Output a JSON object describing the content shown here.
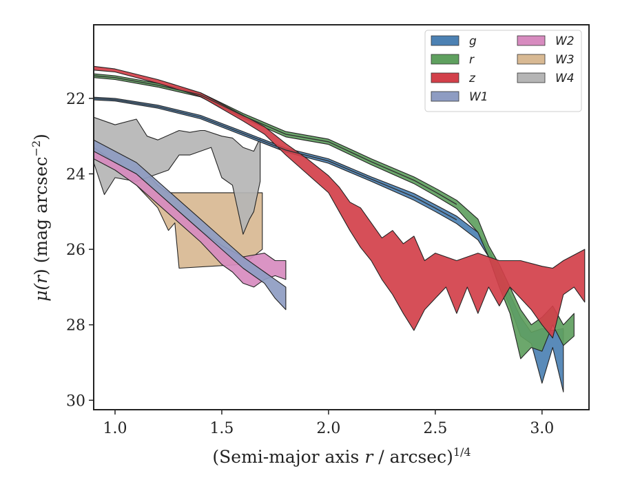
{
  "chart_data": {
    "type": "area",
    "xlabel_main": "(Semi-major axis ",
    "xlabel_var": "r",
    "xlabel_unit": " / arcsec)",
    "xlabel_sup": "1/4",
    "ylabel_main": "μ(",
    "ylabel_var": "r",
    "ylabel_rest": ") (mag arcsec",
    "ylabel_sup": "−2",
    "ylabel_end": ")",
    "xlim": [
      0.9,
      3.22
    ],
    "ylim": [
      30.25,
      20.05
    ],
    "y_inverted": true,
    "x_ticks": [
      1.0,
      1.5,
      2.0,
      2.5,
      3.0
    ],
    "x_tick_labels": [
      "1.0",
      "1.5",
      "2.0",
      "2.5",
      "3.0"
    ],
    "y_ticks": [
      22,
      24,
      26,
      28,
      30
    ],
    "y_tick_labels": [
      "22",
      "24",
      "26",
      "28",
      "30"
    ],
    "grid": false,
    "legend": {
      "placement": "top-right",
      "columns": 2
    },
    "series": [
      {
        "name": "g",
        "color": "#4c81b3",
        "upper": [
          [
            0.9,
            21.97
          ],
          [
            1.0,
            22.0
          ],
          [
            1.2,
            22.18
          ],
          [
            1.4,
            22.45
          ],
          [
            1.6,
            22.88
          ],
          [
            1.8,
            23.32
          ],
          [
            2.0,
            23.6
          ],
          [
            2.2,
            24.08
          ],
          [
            2.4,
            24.52
          ],
          [
            2.5,
            24.82
          ],
          [
            2.6,
            25.12
          ],
          [
            2.7,
            25.55
          ],
          [
            2.75,
            26.0
          ],
          [
            2.8,
            26.6
          ],
          [
            2.85,
            27.2
          ],
          [
            2.9,
            27.8
          ],
          [
            2.95,
            28.2
          ],
          [
            3.0,
            28.1
          ],
          [
            3.05,
            28.15
          ],
          [
            3.1,
            28.1
          ]
        ],
        "lower": [
          [
            3.1,
            29.78
          ],
          [
            3.05,
            28.6
          ],
          [
            3.0,
            29.55
          ],
          [
            2.95,
            28.5
          ],
          [
            2.9,
            28.3
          ],
          [
            2.85,
            27.5
          ],
          [
            2.8,
            26.9
          ],
          [
            2.75,
            26.2
          ],
          [
            2.7,
            25.75
          ],
          [
            2.6,
            25.32
          ],
          [
            2.5,
            25.0
          ],
          [
            2.4,
            24.7
          ],
          [
            2.2,
            24.2
          ],
          [
            2.0,
            23.72
          ],
          [
            1.8,
            23.42
          ],
          [
            1.6,
            22.98
          ],
          [
            1.4,
            22.54
          ],
          [
            1.2,
            22.26
          ],
          [
            1.0,
            22.07
          ],
          [
            0.9,
            22.04
          ]
        ]
      },
      {
        "name": "r",
        "color": "#5fa05f",
        "upper": [
          [
            0.9,
            21.35
          ],
          [
            1.0,
            21.4
          ],
          [
            1.2,
            21.6
          ],
          [
            1.4,
            21.85
          ],
          [
            1.6,
            22.4
          ],
          [
            1.8,
            22.88
          ],
          [
            2.0,
            23.08
          ],
          [
            2.2,
            23.6
          ],
          [
            2.4,
            24.08
          ],
          [
            2.5,
            24.38
          ],
          [
            2.6,
            24.7
          ],
          [
            2.7,
            25.2
          ],
          [
            2.75,
            25.9
          ],
          [
            2.8,
            26.4
          ],
          [
            2.85,
            27.0
          ],
          [
            2.9,
            27.6
          ],
          [
            2.95,
            28.0
          ],
          [
            3.0,
            27.8
          ],
          [
            3.05,
            27.5
          ],
          [
            3.1,
            28.0
          ],
          [
            3.15,
            27.7
          ]
        ],
        "lower": [
          [
            3.15,
            28.3
          ],
          [
            3.1,
            28.55
          ],
          [
            3.05,
            28.0
          ],
          [
            3.0,
            28.7
          ],
          [
            2.95,
            28.6
          ],
          [
            2.9,
            28.9
          ],
          [
            2.85,
            27.7
          ],
          [
            2.8,
            27.0
          ],
          [
            2.75,
            26.2
          ],
          [
            2.7,
            25.55
          ],
          [
            2.6,
            24.92
          ],
          [
            2.5,
            24.58
          ],
          [
            2.4,
            24.26
          ],
          [
            2.2,
            23.76
          ],
          [
            2.0,
            23.22
          ],
          [
            1.8,
            23.02
          ],
          [
            1.6,
            22.52
          ],
          [
            1.4,
            21.96
          ],
          [
            1.2,
            21.7
          ],
          [
            1.0,
            21.5
          ],
          [
            0.9,
            21.45
          ]
        ]
      },
      {
        "name": "z",
        "color": "#d2404a",
        "upper": [
          [
            0.9,
            21.15
          ],
          [
            1.0,
            21.22
          ],
          [
            1.2,
            21.5
          ],
          [
            1.4,
            21.85
          ],
          [
            1.6,
            22.45
          ],
          [
            1.7,
            22.75
          ],
          [
            1.8,
            23.2
          ],
          [
            1.9,
            23.6
          ],
          [
            2.0,
            24.05
          ],
          [
            2.05,
            24.35
          ],
          [
            2.1,
            24.75
          ],
          [
            2.15,
            24.9
          ],
          [
            2.2,
            25.3
          ],
          [
            2.25,
            25.7
          ],
          [
            2.3,
            25.5
          ],
          [
            2.35,
            25.85
          ],
          [
            2.4,
            25.65
          ],
          [
            2.45,
            26.3
          ],
          [
            2.5,
            26.1
          ],
          [
            2.6,
            26.3
          ],
          [
            2.7,
            26.1
          ],
          [
            2.8,
            26.3
          ],
          [
            2.9,
            26.3
          ],
          [
            3.0,
            26.45
          ],
          [
            3.05,
            26.5
          ],
          [
            3.1,
            26.3
          ],
          [
            3.2,
            26.0
          ]
        ],
        "lower": [
          [
            3.2,
            27.4
          ],
          [
            3.15,
            27.0
          ],
          [
            3.1,
            27.2
          ],
          [
            3.05,
            28.35
          ],
          [
            3.0,
            28.0
          ],
          [
            2.95,
            27.6
          ],
          [
            2.9,
            27.3
          ],
          [
            2.85,
            27.0
          ],
          [
            2.8,
            27.5
          ],
          [
            2.75,
            27.0
          ],
          [
            2.7,
            27.7
          ],
          [
            2.65,
            27.0
          ],
          [
            2.6,
            27.7
          ],
          [
            2.55,
            27.0
          ],
          [
            2.5,
            27.3
          ],
          [
            2.45,
            27.6
          ],
          [
            2.4,
            28.15
          ],
          [
            2.35,
            27.7
          ],
          [
            2.3,
            27.2
          ],
          [
            2.25,
            26.8
          ],
          [
            2.2,
            26.3
          ],
          [
            2.15,
            25.95
          ],
          [
            2.1,
            25.5
          ],
          [
            2.05,
            25.0
          ],
          [
            2.0,
            24.5
          ],
          [
            1.9,
            24.0
          ],
          [
            1.8,
            23.5
          ],
          [
            1.7,
            22.95
          ],
          [
            1.6,
            22.6
          ],
          [
            1.4,
            21.95
          ],
          [
            1.2,
            21.6
          ],
          [
            1.0,
            21.3
          ],
          [
            0.9,
            21.25
          ]
        ]
      },
      {
        "name": "W1",
        "color": "#8e9cc2",
        "upper": [
          [
            0.9,
            23.1
          ],
          [
            1.0,
            23.4
          ],
          [
            1.1,
            23.7
          ],
          [
            1.2,
            24.2
          ],
          [
            1.3,
            24.7
          ],
          [
            1.4,
            25.2
          ],
          [
            1.5,
            25.7
          ],
          [
            1.6,
            26.2
          ],
          [
            1.7,
            26.6
          ],
          [
            1.75,
            26.8
          ],
          [
            1.8,
            27.0
          ]
        ],
        "lower": [
          [
            1.8,
            27.6
          ],
          [
            1.75,
            27.3
          ],
          [
            1.7,
            26.9
          ],
          [
            1.6,
            26.5
          ],
          [
            1.5,
            26.0
          ],
          [
            1.4,
            25.5
          ],
          [
            1.3,
            25.0
          ],
          [
            1.2,
            24.5
          ],
          [
            1.1,
            24.0
          ],
          [
            1.0,
            23.7
          ],
          [
            0.9,
            23.4
          ]
        ]
      },
      {
        "name": "W2",
        "color": "#d78bbf",
        "upper": [
          [
            0.9,
            23.3
          ],
          [
            1.0,
            23.7
          ],
          [
            1.1,
            24.0
          ],
          [
            1.2,
            24.5
          ],
          [
            1.3,
            25.0
          ],
          [
            1.4,
            25.5
          ],
          [
            1.5,
            25.9
          ],
          [
            1.6,
            26.2
          ],
          [
            1.7,
            26.1
          ],
          [
            1.75,
            26.3
          ],
          [
            1.8,
            26.3
          ]
        ],
        "lower": [
          [
            1.8,
            26.8
          ],
          [
            1.75,
            26.7
          ],
          [
            1.7,
            26.8
          ],
          [
            1.65,
            27.0
          ],
          [
            1.6,
            26.9
          ],
          [
            1.55,
            26.6
          ],
          [
            1.5,
            26.4
          ],
          [
            1.4,
            25.8
          ],
          [
            1.3,
            25.3
          ],
          [
            1.2,
            24.8
          ],
          [
            1.1,
            24.3
          ],
          [
            1.0,
            23.9
          ],
          [
            0.9,
            23.6
          ]
        ]
      },
      {
        "name": "W3",
        "color": "#d8b993",
        "upper": [
          [
            0.9,
            23.2
          ],
          [
            1.0,
            23.4
          ],
          [
            1.05,
            23.9
          ],
          [
            1.1,
            23.8
          ],
          [
            1.15,
            24.0
          ],
          [
            1.2,
            24.3
          ],
          [
            1.25,
            24.5
          ],
          [
            1.3,
            24.5
          ],
          [
            1.69,
            24.5
          ]
        ],
        "lower": [
          [
            1.69,
            26.0
          ],
          [
            1.6,
            26.4
          ],
          [
            1.45,
            26.45
          ],
          [
            1.3,
            26.5
          ],
          [
            1.28,
            25.3
          ],
          [
            1.25,
            25.5
          ],
          [
            1.2,
            24.9
          ],
          [
            1.15,
            24.6
          ],
          [
            1.1,
            24.3
          ],
          [
            1.0,
            23.9
          ],
          [
            0.9,
            23.5
          ]
        ]
      },
      {
        "name": "W4",
        "color": "#b5b5b5",
        "upper": [
          [
            0.9,
            22.5
          ],
          [
            1.0,
            22.7
          ],
          [
            1.1,
            22.55
          ],
          [
            1.15,
            23.0
          ],
          [
            1.2,
            23.1
          ],
          [
            1.3,
            22.85
          ],
          [
            1.35,
            22.9
          ],
          [
            1.4,
            22.85
          ],
          [
            1.42,
            22.85
          ],
          [
            1.5,
            23.0
          ],
          [
            1.55,
            23.05
          ],
          [
            1.6,
            23.3
          ],
          [
            1.65,
            23.4
          ],
          [
            1.68,
            23.05
          ]
        ],
        "lower": [
          [
            1.68,
            24.2
          ],
          [
            1.65,
            25.0
          ],
          [
            1.63,
            25.2
          ],
          [
            1.6,
            25.6
          ],
          [
            1.55,
            24.3
          ],
          [
            1.5,
            24.1
          ],
          [
            1.45,
            23.3
          ],
          [
            1.4,
            23.4
          ],
          [
            1.35,
            23.5
          ],
          [
            1.3,
            23.5
          ],
          [
            1.25,
            23.9
          ],
          [
            1.2,
            24.0
          ],
          [
            1.1,
            24.2
          ],
          [
            1.0,
            24.1
          ],
          [
            0.95,
            24.55
          ],
          [
            0.9,
            23.7
          ]
        ]
      }
    ]
  }
}
